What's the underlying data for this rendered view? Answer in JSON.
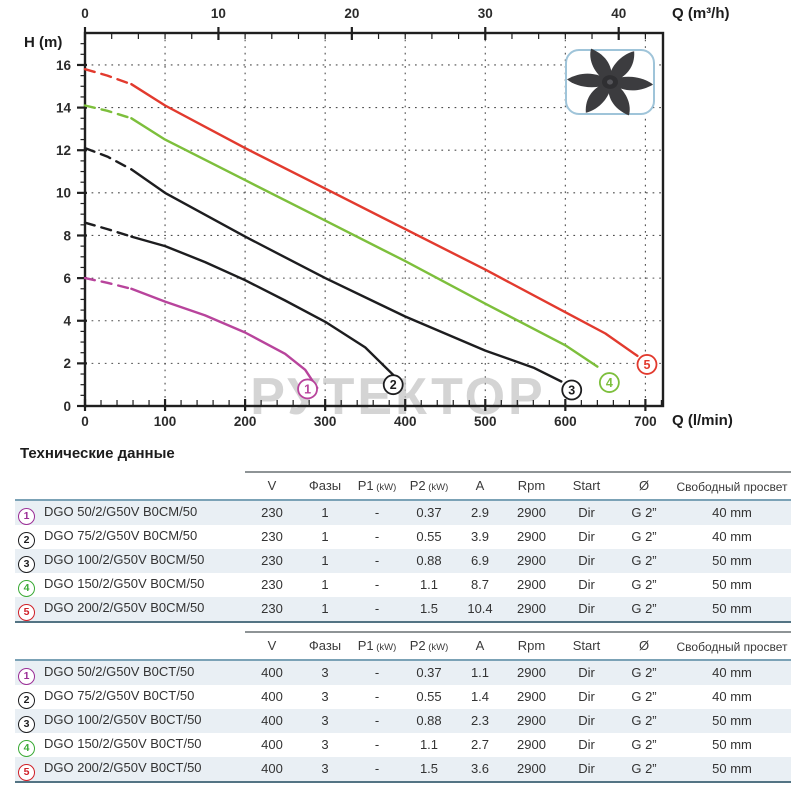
{
  "title": "Технические данные",
  "watermark": "РУТЕКТОР",
  "chart_data": {
    "type": "line",
    "title": "",
    "xlabel_bottom": "Q (l/min)",
    "xlabel_top": "Q (m³/h)",
    "ylabel": "H (m)",
    "x_max_lmin": 722,
    "y_max": 17.5,
    "bottom_ticks": [
      0,
      100,
      200,
      300,
      400,
      500,
      600,
      700
    ],
    "bottom_minor_step": 20,
    "top_ticks": [
      0,
      10,
      20,
      30,
      40
    ],
    "top_minor_step": 2,
    "lmin_per_m3h": 16.6667,
    "left_ticks": [
      0,
      2,
      4,
      6,
      8,
      10,
      12,
      14,
      16
    ],
    "left_minor_step": 0.5,
    "grid": "dotted",
    "series": [
      {
        "id": "1",
        "label": "1",
        "model": "DGO 50/2/G50V",
        "color": "#b8449c",
        "dash_points": [
          [
            0,
            6.0
          ],
          [
            28,
            5.78
          ],
          [
            58,
            5.5
          ]
        ],
        "solid_points": [
          [
            58,
            5.5
          ],
          [
            100,
            4.9
          ],
          [
            150,
            4.25
          ],
          [
            200,
            3.45
          ],
          [
            250,
            2.45
          ],
          [
            275,
            1.7
          ],
          [
            290,
            0.85
          ]
        ],
        "marker": {
          "q": 278,
          "h": 0.8
        }
      },
      {
        "id": "2",
        "label": "2",
        "model": "DGO 75/2/G50V",
        "color": "#1d1d1f",
        "dash_points": [
          [
            0,
            8.6
          ],
          [
            28,
            8.3
          ],
          [
            58,
            7.95
          ]
        ],
        "solid_points": [
          [
            58,
            7.95
          ],
          [
            100,
            7.5
          ],
          [
            150,
            6.75
          ],
          [
            200,
            5.9
          ],
          [
            250,
            4.95
          ],
          [
            300,
            3.95
          ],
          [
            350,
            2.75
          ],
          [
            388,
            1.35
          ]
        ],
        "marker": {
          "q": 385,
          "h": 1.0
        }
      },
      {
        "id": "3",
        "label": "3",
        "model": "DGO 100/2/G50V",
        "color": "#1d1d1f",
        "dash_points": [
          [
            0,
            12.1
          ],
          [
            28,
            11.7
          ],
          [
            58,
            11.1
          ]
        ],
        "solid_points": [
          [
            58,
            11.1
          ],
          [
            100,
            10.0
          ],
          [
            200,
            7.95
          ],
          [
            300,
            6.0
          ],
          [
            400,
            4.2
          ],
          [
            500,
            2.6
          ],
          [
            560,
            1.8
          ],
          [
            595,
            1.15
          ]
        ],
        "marker": {
          "q": 608,
          "h": 0.75
        }
      },
      {
        "id": "4",
        "label": "4",
        "model": "DGO 150/2/G50V",
        "color": "#7dbf3c",
        "dash_points": [
          [
            0,
            14.1
          ],
          [
            28,
            13.85
          ],
          [
            58,
            13.5
          ]
        ],
        "solid_points": [
          [
            58,
            13.5
          ],
          [
            100,
            12.5
          ],
          [
            200,
            10.6
          ],
          [
            300,
            8.7
          ],
          [
            400,
            6.8
          ],
          [
            500,
            4.8
          ],
          [
            600,
            2.85
          ],
          [
            640,
            1.85
          ]
        ],
        "marker": {
          "q": 655,
          "h": 1.1
        }
      },
      {
        "id": "5",
        "label": "5",
        "model": "DGO 200/2/G50V",
        "color": "#e23a2e",
        "dash_points": [
          [
            0,
            15.8
          ],
          [
            28,
            15.5
          ],
          [
            58,
            15.1
          ]
        ],
        "solid_points": [
          [
            58,
            15.1
          ],
          [
            100,
            14.1
          ],
          [
            200,
            12.1
          ],
          [
            300,
            10.2
          ],
          [
            400,
            8.3
          ],
          [
            500,
            6.4
          ],
          [
            600,
            4.4
          ],
          [
            650,
            3.4
          ],
          [
            690,
            2.35
          ]
        ],
        "marker": {
          "q": 702,
          "h": 1.95
        }
      }
    ],
    "impeller_icon": "impeller-icon"
  },
  "tables": [
    {
      "columns": [
        {
          "main": "V"
        },
        {
          "main": "Фазы"
        },
        {
          "main": "P1",
          "sub": "(kW)"
        },
        {
          "main": "P2",
          "sub": "(kW)"
        },
        {
          "main": "A"
        },
        {
          "main": "Rpm"
        },
        {
          "main": "Start"
        },
        {
          "main": "Ø"
        },
        {
          "main": "Свободный просвет",
          "twoline": true
        }
      ],
      "rows": [
        {
          "num": "1",
          "color": "#9b2d96",
          "model": "DGO 50/2/G50V B0CM/50",
          "values": [
            "230",
            "1",
            "-",
            "0.37",
            "2.9",
            "2900",
            "Dir",
            "G 2”",
            "40 mm"
          ]
        },
        {
          "num": "2",
          "color": "#1d1d1f",
          "model": "DGO 75/2/G50V B0CM/50",
          "values": [
            "230",
            "1",
            "-",
            "0.55",
            "3.9",
            "2900",
            "Dir",
            "G 2”",
            "40 mm"
          ]
        },
        {
          "num": "3",
          "color": "#1d1d1f",
          "model": "DGO 100/2/G50V B0CM/50",
          "values": [
            "230",
            "1",
            "-",
            "0.88",
            "6.9",
            "2900",
            "Dir",
            "G 2”",
            "50 mm"
          ]
        },
        {
          "num": "4",
          "color": "#3aaa35",
          "model": "DGO 150/2/G50V B0CM/50",
          "values": [
            "230",
            "1",
            "-",
            "1.1",
            "8.7",
            "2900",
            "Dir",
            "G 2”",
            "50 mm"
          ]
        },
        {
          "num": "5",
          "color": "#d02028",
          "model": "DGO 200/2/G50V B0CM/50",
          "values": [
            "230",
            "1",
            "-",
            "1.5",
            "10.4",
            "2900",
            "Dir",
            "G 2”",
            "50 mm"
          ]
        }
      ]
    },
    {
      "columns": [
        {
          "main": "V"
        },
        {
          "main": "Фазы"
        },
        {
          "main": "P1",
          "sub": "(kW)"
        },
        {
          "main": "P2",
          "sub": "(kW)"
        },
        {
          "main": "A"
        },
        {
          "main": "Rpm"
        },
        {
          "main": "Start"
        },
        {
          "main": "Ø"
        },
        {
          "main": "Свободный просвет",
          "twoline": true
        }
      ],
      "rows": [
        {
          "num": "1",
          "color": "#9b2d96",
          "model": "DGO 50/2/G50V B0CT/50",
          "values": [
            "400",
            "3",
            "-",
            "0.37",
            "1.1",
            "2900",
            "Dir",
            "G 2”",
            "40 mm"
          ]
        },
        {
          "num": "2",
          "color": "#1d1d1f",
          "model": "DGO 75/2/G50V B0CT/50",
          "values": [
            "400",
            "3",
            "-",
            "0.55",
            "1.4",
            "2900",
            "Dir",
            "G 2”",
            "40 mm"
          ]
        },
        {
          "num": "3",
          "color": "#1d1d1f",
          "model": "DGO 100/2/G50V B0CT/50",
          "values": [
            "400",
            "3",
            "-",
            "0.88",
            "2.3",
            "2900",
            "Dir",
            "G 2”",
            "50 mm"
          ]
        },
        {
          "num": "4",
          "color": "#3aaa35",
          "model": "DGO 150/2/G50V B0CT/50",
          "values": [
            "400",
            "3",
            "-",
            "1.1",
            "2.7",
            "2900",
            "Dir",
            "G 2”",
            "50 mm"
          ]
        },
        {
          "num": "5",
          "color": "#d02028",
          "model": "DGO 200/2/G50V B0CT/50",
          "values": [
            "400",
            "3",
            "-",
            "1.5",
            "3.6",
            "2900",
            "Dir",
            "G 2”",
            "50 mm"
          ]
        }
      ]
    }
  ]
}
